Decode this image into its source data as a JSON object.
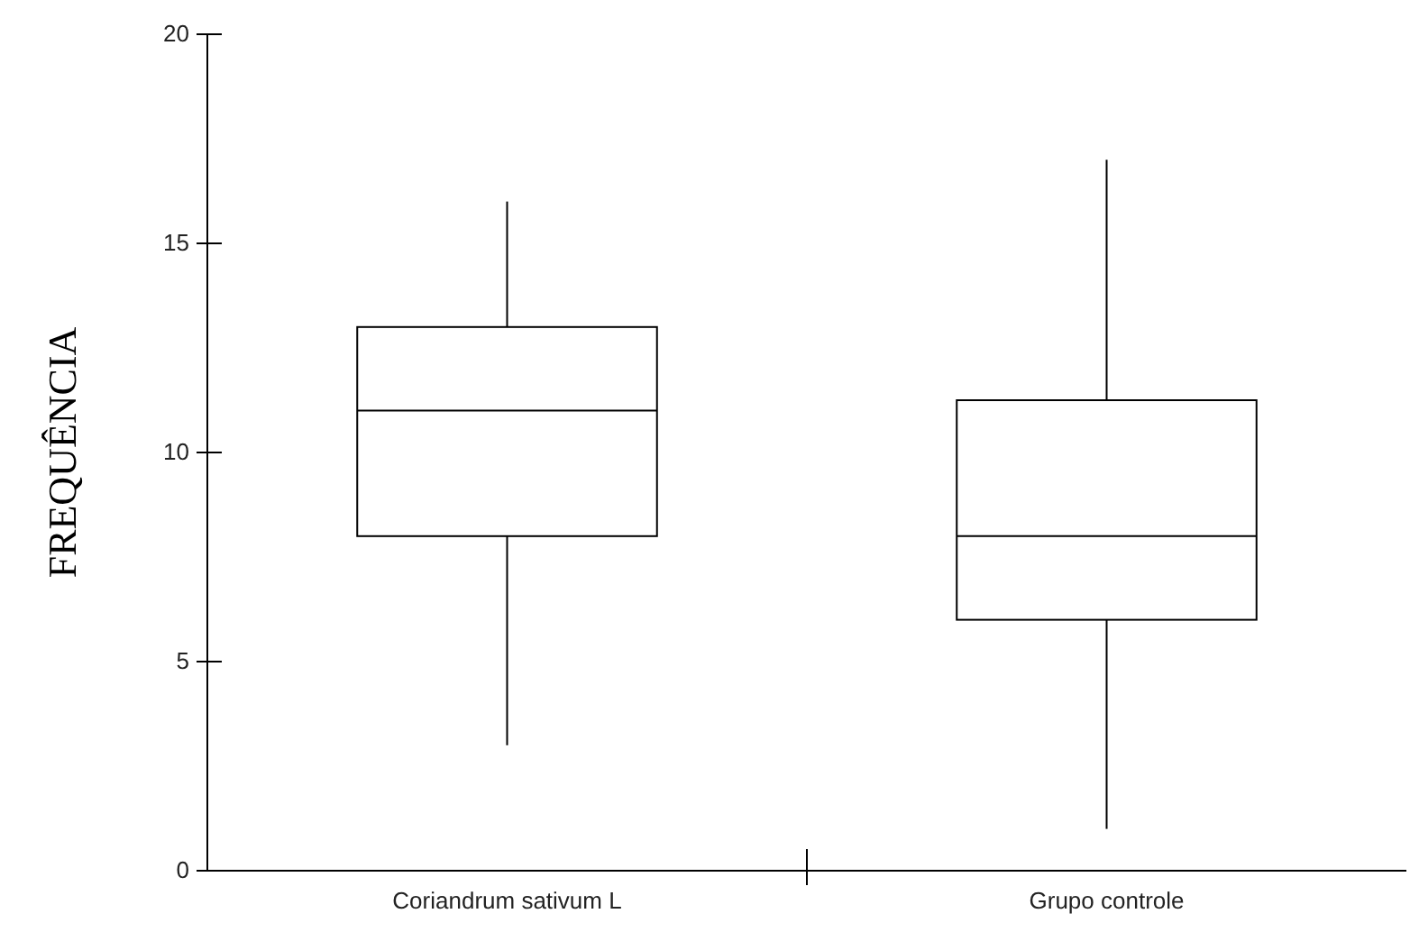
{
  "chart_data": {
    "type": "box",
    "ylabel": "FREQUÊNCIA",
    "categories": [
      "Coriandrum sativum L",
      "Grupo controle"
    ],
    "boxes": [
      {
        "low": 3,
        "q1": 8,
        "median": 11,
        "q3": 13,
        "high": 16
      },
      {
        "low": 1,
        "q1": 6,
        "median": 8,
        "q3": 11.25,
        "high": 17
      }
    ],
    "ylim": [
      0,
      20
    ],
    "yticks": [
      0,
      5,
      10,
      15,
      20
    ],
    "color": "#000000",
    "grid": false
  }
}
